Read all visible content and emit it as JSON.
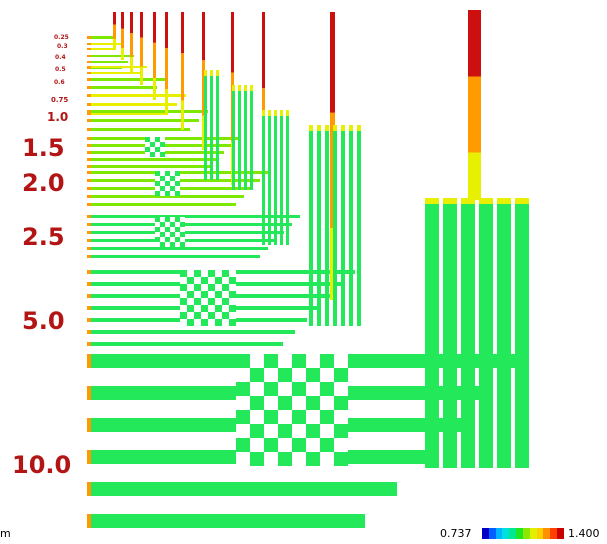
{
  "unit_fragment": "m",
  "pattern_labels": [
    "0.25",
    "0.3",
    "0.4",
    "0.5",
    "0.6",
    "0.75",
    "1.0",
    "1.5",
    "2.0",
    "2.5",
    "5.0",
    "10.0"
  ],
  "color_scale": {
    "min_label": "0.737",
    "max_label": "1.400",
    "colors": [
      "#0000c8",
      "#0060ff",
      "#00b4ff",
      "#00e0e0",
      "#00e890",
      "#20e820",
      "#8ce800",
      "#e0f000",
      "#ffd000",
      "#ff9000",
      "#ff4000",
      "#c80000"
    ]
  },
  "palette": {
    "label": "#b31414",
    "green": "#22e85a",
    "lime": "#7ee800",
    "yellow": "#e6f000",
    "orange": "#ff9a00",
    "red": "#cc1010"
  }
}
